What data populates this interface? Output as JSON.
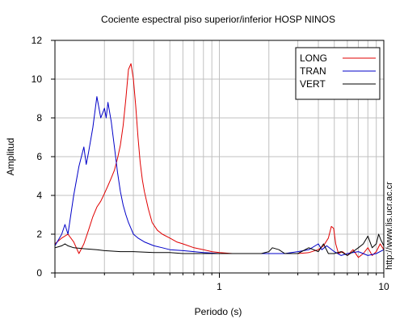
{
  "chart_data": {
    "type": "line",
    "title": "Cociente espectral piso superior/inferior  HOSP NINOS",
    "xlabel": "Periodo (s)",
    "ylabel": "Amplitud",
    "xscale": "log",
    "xlim": [
      0.1,
      10
    ],
    "ylim": [
      0,
      12
    ],
    "xticks": [
      {
        "value": 1,
        "label": "1"
      },
      {
        "value": 10,
        "label": "10"
      }
    ],
    "yticks": [
      0,
      2,
      4,
      6,
      8,
      10,
      12
    ],
    "grid": true,
    "legend_position": "top-right",
    "credit": "http://www.lis.ucr.ac.cr",
    "series": [
      {
        "name": "LONG",
        "color": "#e00000",
        "x": [
          0.1,
          0.11,
          0.12,
          0.13,
          0.14,
          0.15,
          0.16,
          0.17,
          0.18,
          0.19,
          0.2,
          0.21,
          0.22,
          0.23,
          0.24,
          0.25,
          0.26,
          0.27,
          0.28,
          0.29,
          0.3,
          0.31,
          0.32,
          0.33,
          0.34,
          0.35,
          0.37,
          0.39,
          0.42,
          0.45,
          0.5,
          0.55,
          0.6,
          0.7,
          0.8,
          0.9,
          1.0,
          1.2,
          1.5,
          2.0,
          2.5,
          3.0,
          3.5,
          4.0,
          4.3,
          4.6,
          4.8,
          4.95,
          5.1,
          5.3,
          5.6,
          6.0,
          6.5,
          7.0,
          7.5,
          8.0,
          8.5,
          9.0,
          9.5,
          10.0
        ],
        "y": [
          1.5,
          1.8,
          2.0,
          1.6,
          1.0,
          1.5,
          2.2,
          2.9,
          3.4,
          3.7,
          4.1,
          4.5,
          4.9,
          5.3,
          5.9,
          6.6,
          7.6,
          9.0,
          10.5,
          10.8,
          10.0,
          8.6,
          7.0,
          5.7,
          4.8,
          4.2,
          3.3,
          2.6,
          2.2,
          2.0,
          1.8,
          1.6,
          1.5,
          1.3,
          1.2,
          1.1,
          1.05,
          1.0,
          1.0,
          1.0,
          1.0,
          1.0,
          1.05,
          1.2,
          1.4,
          1.8,
          2.4,
          2.3,
          1.5,
          1.0,
          1.1,
          0.9,
          1.2,
          0.8,
          1.0,
          1.3,
          0.9,
          1.1,
          1.5,
          1.2
        ]
      },
      {
        "name": "TRAN",
        "color": "#0000c8",
        "x": [
          0.1,
          0.11,
          0.115,
          0.12,
          0.13,
          0.14,
          0.15,
          0.155,
          0.16,
          0.17,
          0.18,
          0.19,
          0.2,
          0.205,
          0.21,
          0.22,
          0.23,
          0.24,
          0.25,
          0.26,
          0.27,
          0.28,
          0.29,
          0.3,
          0.32,
          0.35,
          0.4,
          0.45,
          0.5,
          0.6,
          0.7,
          0.8,
          1.0,
          1.2,
          1.5,
          2.0,
          2.5,
          3.0,
          3.5,
          4.0,
          4.2,
          4.5,
          5.0,
          5.5,
          6.0,
          7.0,
          8.0,
          9.0,
          10.0
        ],
        "y": [
          1.4,
          2.0,
          2.5,
          2.0,
          4.0,
          5.5,
          6.5,
          5.6,
          6.2,
          7.5,
          9.1,
          8.0,
          8.5,
          8.0,
          8.8,
          7.8,
          6.5,
          5.2,
          4.2,
          3.5,
          3.0,
          2.6,
          2.3,
          2.0,
          1.8,
          1.6,
          1.4,
          1.3,
          1.2,
          1.15,
          1.1,
          1.05,
          1.0,
          1.0,
          1.0,
          1.0,
          1.0,
          1.1,
          1.2,
          1.5,
          1.2,
          1.4,
          1.1,
          0.9,
          1.0,
          1.1,
          0.9,
          1.0,
          1.2
        ]
      },
      {
        "name": "VERT",
        "color": "#000000",
        "x": [
          0.1,
          0.105,
          0.11,
          0.115,
          0.12,
          0.13,
          0.15,
          0.18,
          0.2,
          0.25,
          0.3,
          0.4,
          0.5,
          0.6,
          0.7,
          0.8,
          0.9,
          1.0,
          1.2,
          1.5,
          1.8,
          2.0,
          2.1,
          2.3,
          2.5,
          3.0,
          3.5,
          4.0,
          4.3,
          4.6,
          5.0,
          5.5,
          6.0,
          6.5,
          7.0,
          7.5,
          8.0,
          8.5,
          9.0,
          9.3,
          9.6,
          10.0
        ],
        "y": [
          1.3,
          1.35,
          1.4,
          1.5,
          1.4,
          1.3,
          1.25,
          1.2,
          1.15,
          1.1,
          1.1,
          1.05,
          1.05,
          1.0,
          1.0,
          1.0,
          1.0,
          1.0,
          1.0,
          1.0,
          1.0,
          1.1,
          1.3,
          1.2,
          1.0,
          1.0,
          1.3,
          1.1,
          1.5,
          1.0,
          1.0,
          1.1,
          0.9,
          1.1,
          1.3,
          1.5,
          1.9,
          1.3,
          1.5,
          2.0,
          1.7,
          1.4
        ]
      }
    ]
  }
}
